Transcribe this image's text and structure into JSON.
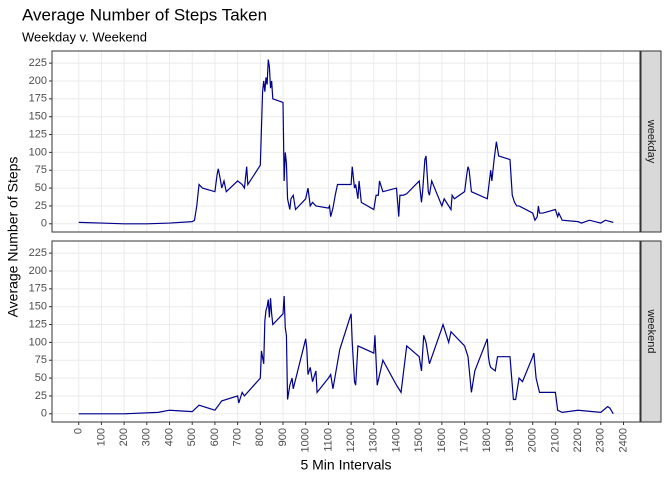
{
  "chart_data": {
    "type": "line",
    "title": "Average Number of Steps Taken",
    "subtitle": "Weekday v. Weekend",
    "x_label": "5 Min Intervals",
    "y_label": "Average Number of Steps",
    "facets": true,
    "grid": true,
    "xlim": [
      -117.75,
      2472.75
    ],
    "xticks": [
      0,
      100,
      200,
      300,
      400,
      500,
      600,
      700,
      800,
      900,
      1000,
      1100,
      1200,
      1300,
      1400,
      1500,
      1600,
      1700,
      1800,
      1900,
      2000,
      2100,
      2200,
      2300,
      2400
    ],
    "ylim": [
      -11.5,
      242
    ],
    "yticks": [
      0,
      25,
      50,
      75,
      100,
      125,
      150,
      175,
      200,
      225
    ],
    "series": [
      {
        "name": "weekday",
        "color": "#00008b",
        "x": [
          0,
          100,
          200,
          300,
          400,
          500,
          510,
          520,
          530,
          545,
          600,
          610,
          615,
          625,
          630,
          640,
          650,
          700,
          720,
          730,
          740,
          745,
          800,
          810,
          815,
          820,
          825,
          830,
          835,
          840,
          845,
          850,
          855,
          900,
          905,
          910,
          915,
          920,
          930,
          935,
          945,
          955,
          1000,
          1010,
          1020,
          1030,
          1045,
          1100,
          1105,
          1110,
          1120,
          1130,
          1140,
          1200,
          1205,
          1215,
          1220,
          1230,
          1235,
          1245,
          1300,
          1310,
          1320,
          1325,
          1340,
          1400,
          1405,
          1410,
          1415,
          1430,
          1445,
          1500,
          1510,
          1515,
          1525,
          1530,
          1540,
          1545,
          1555,
          1600,
          1610,
          1620,
          1640,
          1645,
          1655,
          1700,
          1710,
          1715,
          1720,
          1730,
          1800,
          1815,
          1820,
          1830,
          1840,
          1850,
          1900,
          1910,
          1920,
          1930,
          1940,
          2000,
          2010,
          2020,
          2025,
          2030,
          2045,
          2100,
          2110,
          2115,
          2130,
          2200,
          2215,
          2250,
          2300,
          2320,
          2355
        ],
        "values": [
          2,
          1,
          0,
          0,
          1,
          3,
          5,
          25,
          55,
          50,
          45,
          70,
          77,
          60,
          50,
          60,
          45,
          60,
          55,
          50,
          80,
          55,
          82,
          185,
          200,
          185,
          205,
          195,
          230,
          220,
          190,
          200,
          175,
          170,
          60,
          100,
          85,
          35,
          20,
          35,
          40,
          20,
          35,
          50,
          25,
          30,
          25,
          22,
          25,
          10,
          22,
          40,
          55,
          55,
          80,
          50,
          55,
          35,
          60,
          30,
          20,
          40,
          40,
          60,
          45,
          50,
          30,
          10,
          40,
          40,
          42,
          60,
          30,
          45,
          90,
          95,
          45,
          40,
          60,
          25,
          35,
          30,
          20,
          40,
          35,
          45,
          70,
          80,
          75,
          45,
          35,
          75,
          60,
          90,
          115,
          95,
          90,
          40,
          30,
          25,
          25,
          15,
          5,
          10,
          25,
          15,
          15,
          20,
          10,
          15,
          5,
          3,
          1,
          5,
          1,
          5,
          2
        ]
      },
      {
        "name": "weekend",
        "color": "#00008b",
        "x": [
          0,
          100,
          200,
          350,
          400,
          500,
          530,
          600,
          630,
          700,
          705,
          720,
          730,
          800,
          805,
          815,
          820,
          825,
          830,
          835,
          840,
          845,
          850,
          855,
          900,
          905,
          910,
          915,
          920,
          930,
          940,
          945,
          1000,
          1005,
          1010,
          1020,
          1030,
          1045,
          1050,
          1100,
          1110,
          1120,
          1150,
          1200,
          1205,
          1215,
          1220,
          1230,
          1300,
          1305,
          1315,
          1340,
          1400,
          1420,
          1445,
          1500,
          1510,
          1520,
          1530,
          1545,
          1600,
          1605,
          1630,
          1640,
          1700,
          1715,
          1730,
          1745,
          1800,
          1805,
          1810,
          1815,
          1835,
          1845,
          1900,
          1915,
          1925,
          1940,
          1955,
          2000,
          2005,
          2015,
          2030,
          2100,
          2110,
          2130,
          2200,
          2300,
          2330,
          2340,
          2355
        ],
        "values": [
          0,
          0,
          0,
          2,
          5,
          3,
          12,
          5,
          18,
          25,
          15,
          30,
          25,
          50,
          88,
          70,
          130,
          145,
          150,
          160,
          135,
          162,
          140,
          125,
          140,
          165,
          120,
          110,
          20,
          40,
          50,
          35,
          105,
          90,
          55,
          65,
          45,
          60,
          30,
          50,
          55,
          35,
          90,
          140,
          100,
          45,
          40,
          95,
          85,
          110,
          40,
          75,
          40,
          30,
          95,
          80,
          60,
          110,
          100,
          70,
          120,
          125,
          100,
          115,
          95,
          80,
          30,
          60,
          105,
          80,
          70,
          65,
          60,
          80,
          80,
          20,
          20,
          50,
          45,
          80,
          85,
          50,
          30,
          30,
          5,
          2,
          5,
          2,
          10,
          8,
          0
        ]
      }
    ]
  }
}
